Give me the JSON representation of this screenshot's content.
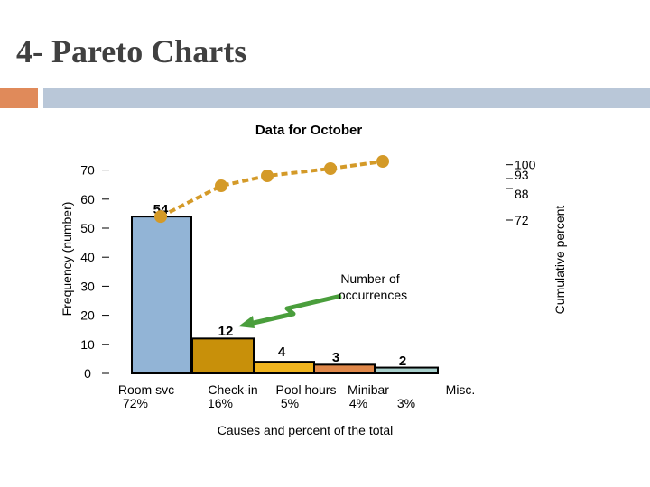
{
  "slide": {
    "title": "4- Pareto Charts",
    "accent_colors": {
      "square": "#e08a5a",
      "bar": "#b9c7d8"
    }
  },
  "chart_data": {
    "type": "bar",
    "title": "Data for October",
    "xlabel": "Causes and percent of the total",
    "ylabel": "Frequency (number)",
    "y2label": "Cumulative percent",
    "ylim": [
      0,
      70
    ],
    "yticks": [
      0,
      10,
      20,
      30,
      40,
      50,
      60,
      70
    ],
    "y2ticks": [
      72,
      88,
      93,
      100
    ],
    "categories": [
      "Room svc",
      "Check-in",
      "Pool hours",
      "Minibar",
      "Misc."
    ],
    "percent_labels": [
      "72%",
      "16%",
      "5%",
      "4%",
      "3%"
    ],
    "values": [
      54,
      12,
      4,
      3,
      2
    ],
    "value_labels": [
      "54",
      "12",
      "4",
      "3",
      "2"
    ],
    "bar_colors": [
      "#92b4d6",
      "#c8900a",
      "#f0b41e",
      "#e0884a",
      "#a8d0cc"
    ],
    "cumulative_percent": [
      72,
      88,
      93,
      97,
      100
    ],
    "cumulative_color": "#d49a28",
    "annotation": {
      "text_line1": "Number of",
      "text_line2": "occurrences",
      "arrow_color": "#4a9e3c"
    },
    "grid": false
  }
}
